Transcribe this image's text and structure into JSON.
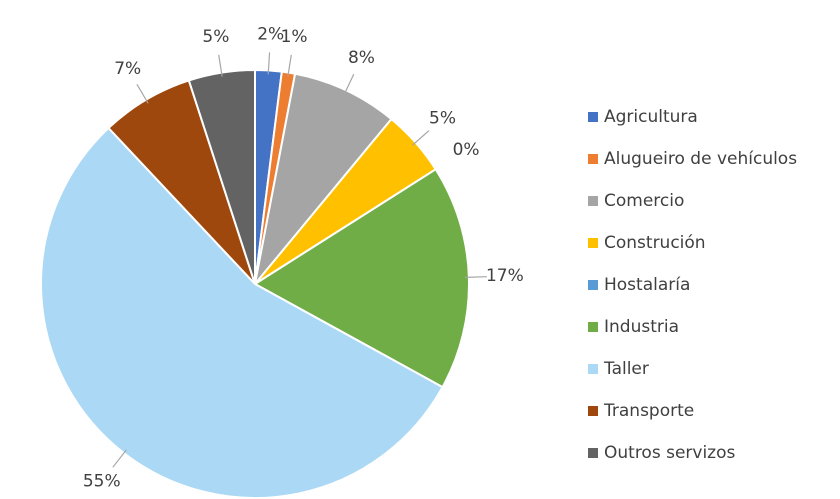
{
  "chart_data": {
    "type": "pie",
    "categories": [
      "Agricultura",
      "Alugueiro de vehículos",
      "Comercio",
      "Construción",
      "Hostalaría",
      "Industria",
      "Taller",
      "Transporte",
      "Outros servizos"
    ],
    "values": [
      2,
      1,
      8,
      5,
      0,
      17,
      55,
      7,
      5
    ],
    "value_labels": [
      "2%",
      "1%",
      "8%",
      "5%",
      "0%",
      "17%",
      "55%",
      "7%",
      "5%"
    ],
    "colors": [
      "#4472c4",
      "#ed7d31",
      "#a5a5a5",
      "#ffc000",
      "#5b9bd5",
      "#70ad47",
      "#abd9f5",
      "#9e480e",
      "#636363"
    ],
    "legend": "right"
  }
}
